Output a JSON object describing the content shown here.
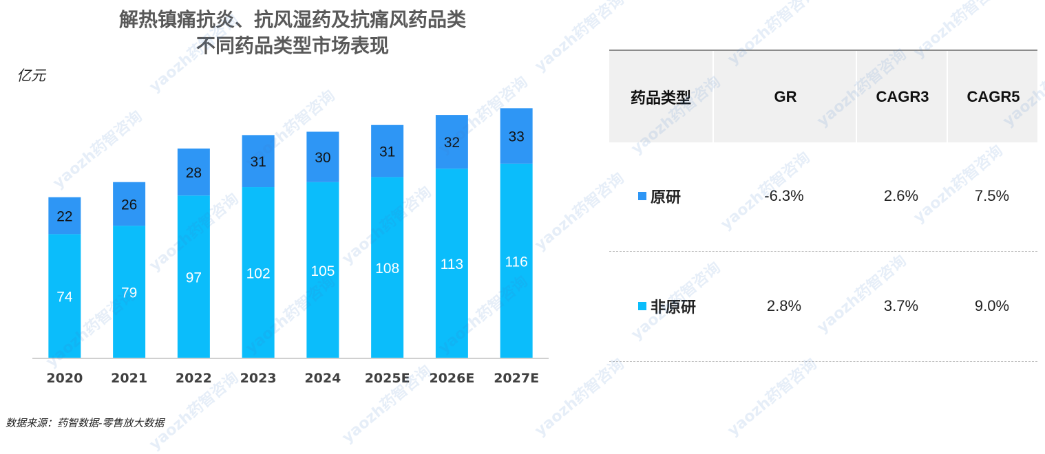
{
  "title_line1": "解热镇痛抗炎、抗风湿药及抗痛风药品类",
  "title_line2": "不同药品类型市场表现",
  "unit": "亿元",
  "source": "数据来源：药智数据-零售放大数据",
  "watermark": "yaozh药智咨询",
  "colors": {
    "original": "#2e96f5",
    "generic": "#0bbdfb",
    "axis": "#d0d0d0"
  },
  "chart_data": {
    "type": "bar",
    "stacked": true,
    "categories": [
      "2020",
      "2021",
      "2022",
      "2023",
      "2024",
      "2025E",
      "2026E",
      "2027E"
    ],
    "series": [
      {
        "name": "非原研",
        "values": [
          74,
          79,
          97,
          102,
          105,
          108,
          113,
          116
        ]
      },
      {
        "name": "原研",
        "values": [
          22,
          26,
          28,
          31,
          30,
          31,
          32,
          33
        ]
      }
    ],
    "ylim": [
      0,
      152
    ],
    "grid": false,
    "data_labels": true
  },
  "table": {
    "headers": [
      "药品类型",
      "GR",
      "CAGR3",
      "CAGR5"
    ],
    "rows": [
      {
        "label": "原研",
        "swatch": "#2e96f5",
        "values": [
          "-6.3%",
          "2.6%",
          "7.5%"
        ]
      },
      {
        "label": "非原研",
        "swatch": "#0bbdfb",
        "values": [
          "2.8%",
          "3.7%",
          "9.0%"
        ]
      }
    ]
  }
}
